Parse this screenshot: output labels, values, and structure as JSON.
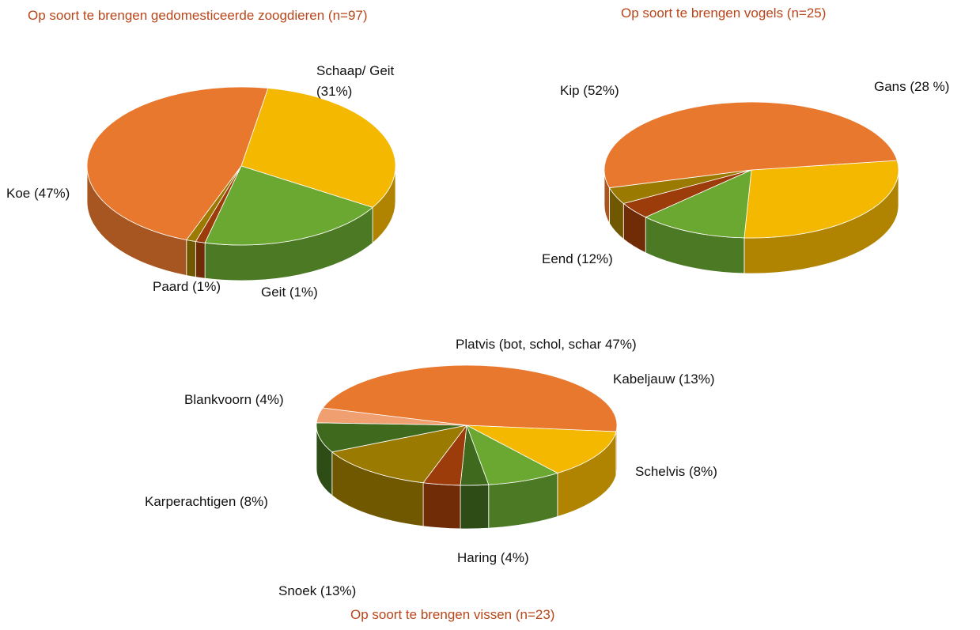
{
  "chart_data": [
    {
      "type": "pie",
      "title": "Op soort te brengen gedomesticeerde zoogdieren (n=97)",
      "categories": [
        "Schaap/ Geit (31%)",
        null,
        "Geit (1%)",
        "Paard (1%)",
        "Koe (47%)"
      ],
      "values": [
        31,
        20,
        1,
        1,
        47
      ],
      "colors": [
        "#f5b800",
        "#6aa832",
        "#9c3c0a",
        "#9a7a00",
        "#e8782e"
      ]
    },
    {
      "type": "pie",
      "title": "Op soort te brengen vogels (n=25)",
      "categories": [
        "Gans (28 %)",
        "Eend (12%)",
        null,
        null,
        "Kip (52%)"
      ],
      "values": [
        28,
        12,
        4,
        4,
        52
      ],
      "colors": [
        "#f5b800",
        "#6aa832",
        "#9c3c0a",
        "#9a7a00",
        "#e8782e"
      ]
    },
    {
      "type": "pie",
      "title": "Op soort te brengen vissen (n=23)",
      "categories": [
        "Kabeljauw (13%)",
        "Schelvis (8%)",
        null,
        "Haring (4%)",
        "Snoek (13%)",
        "Karperachtigen (8%)",
        "Blankvoorn (4%)",
        "Platvis (bot, schol, schar 47%)"
      ],
      "values": [
        13,
        8,
        3,
        4,
        13,
        8,
        4,
        47
      ],
      "colors": [
        "#f5b800",
        "#6aa832",
        "#3f6a1e",
        "#9c3c0a",
        "#9a7a00",
        "#3f6a1e",
        "#f0a070",
        "#e8782e"
      ]
    }
  ]
}
